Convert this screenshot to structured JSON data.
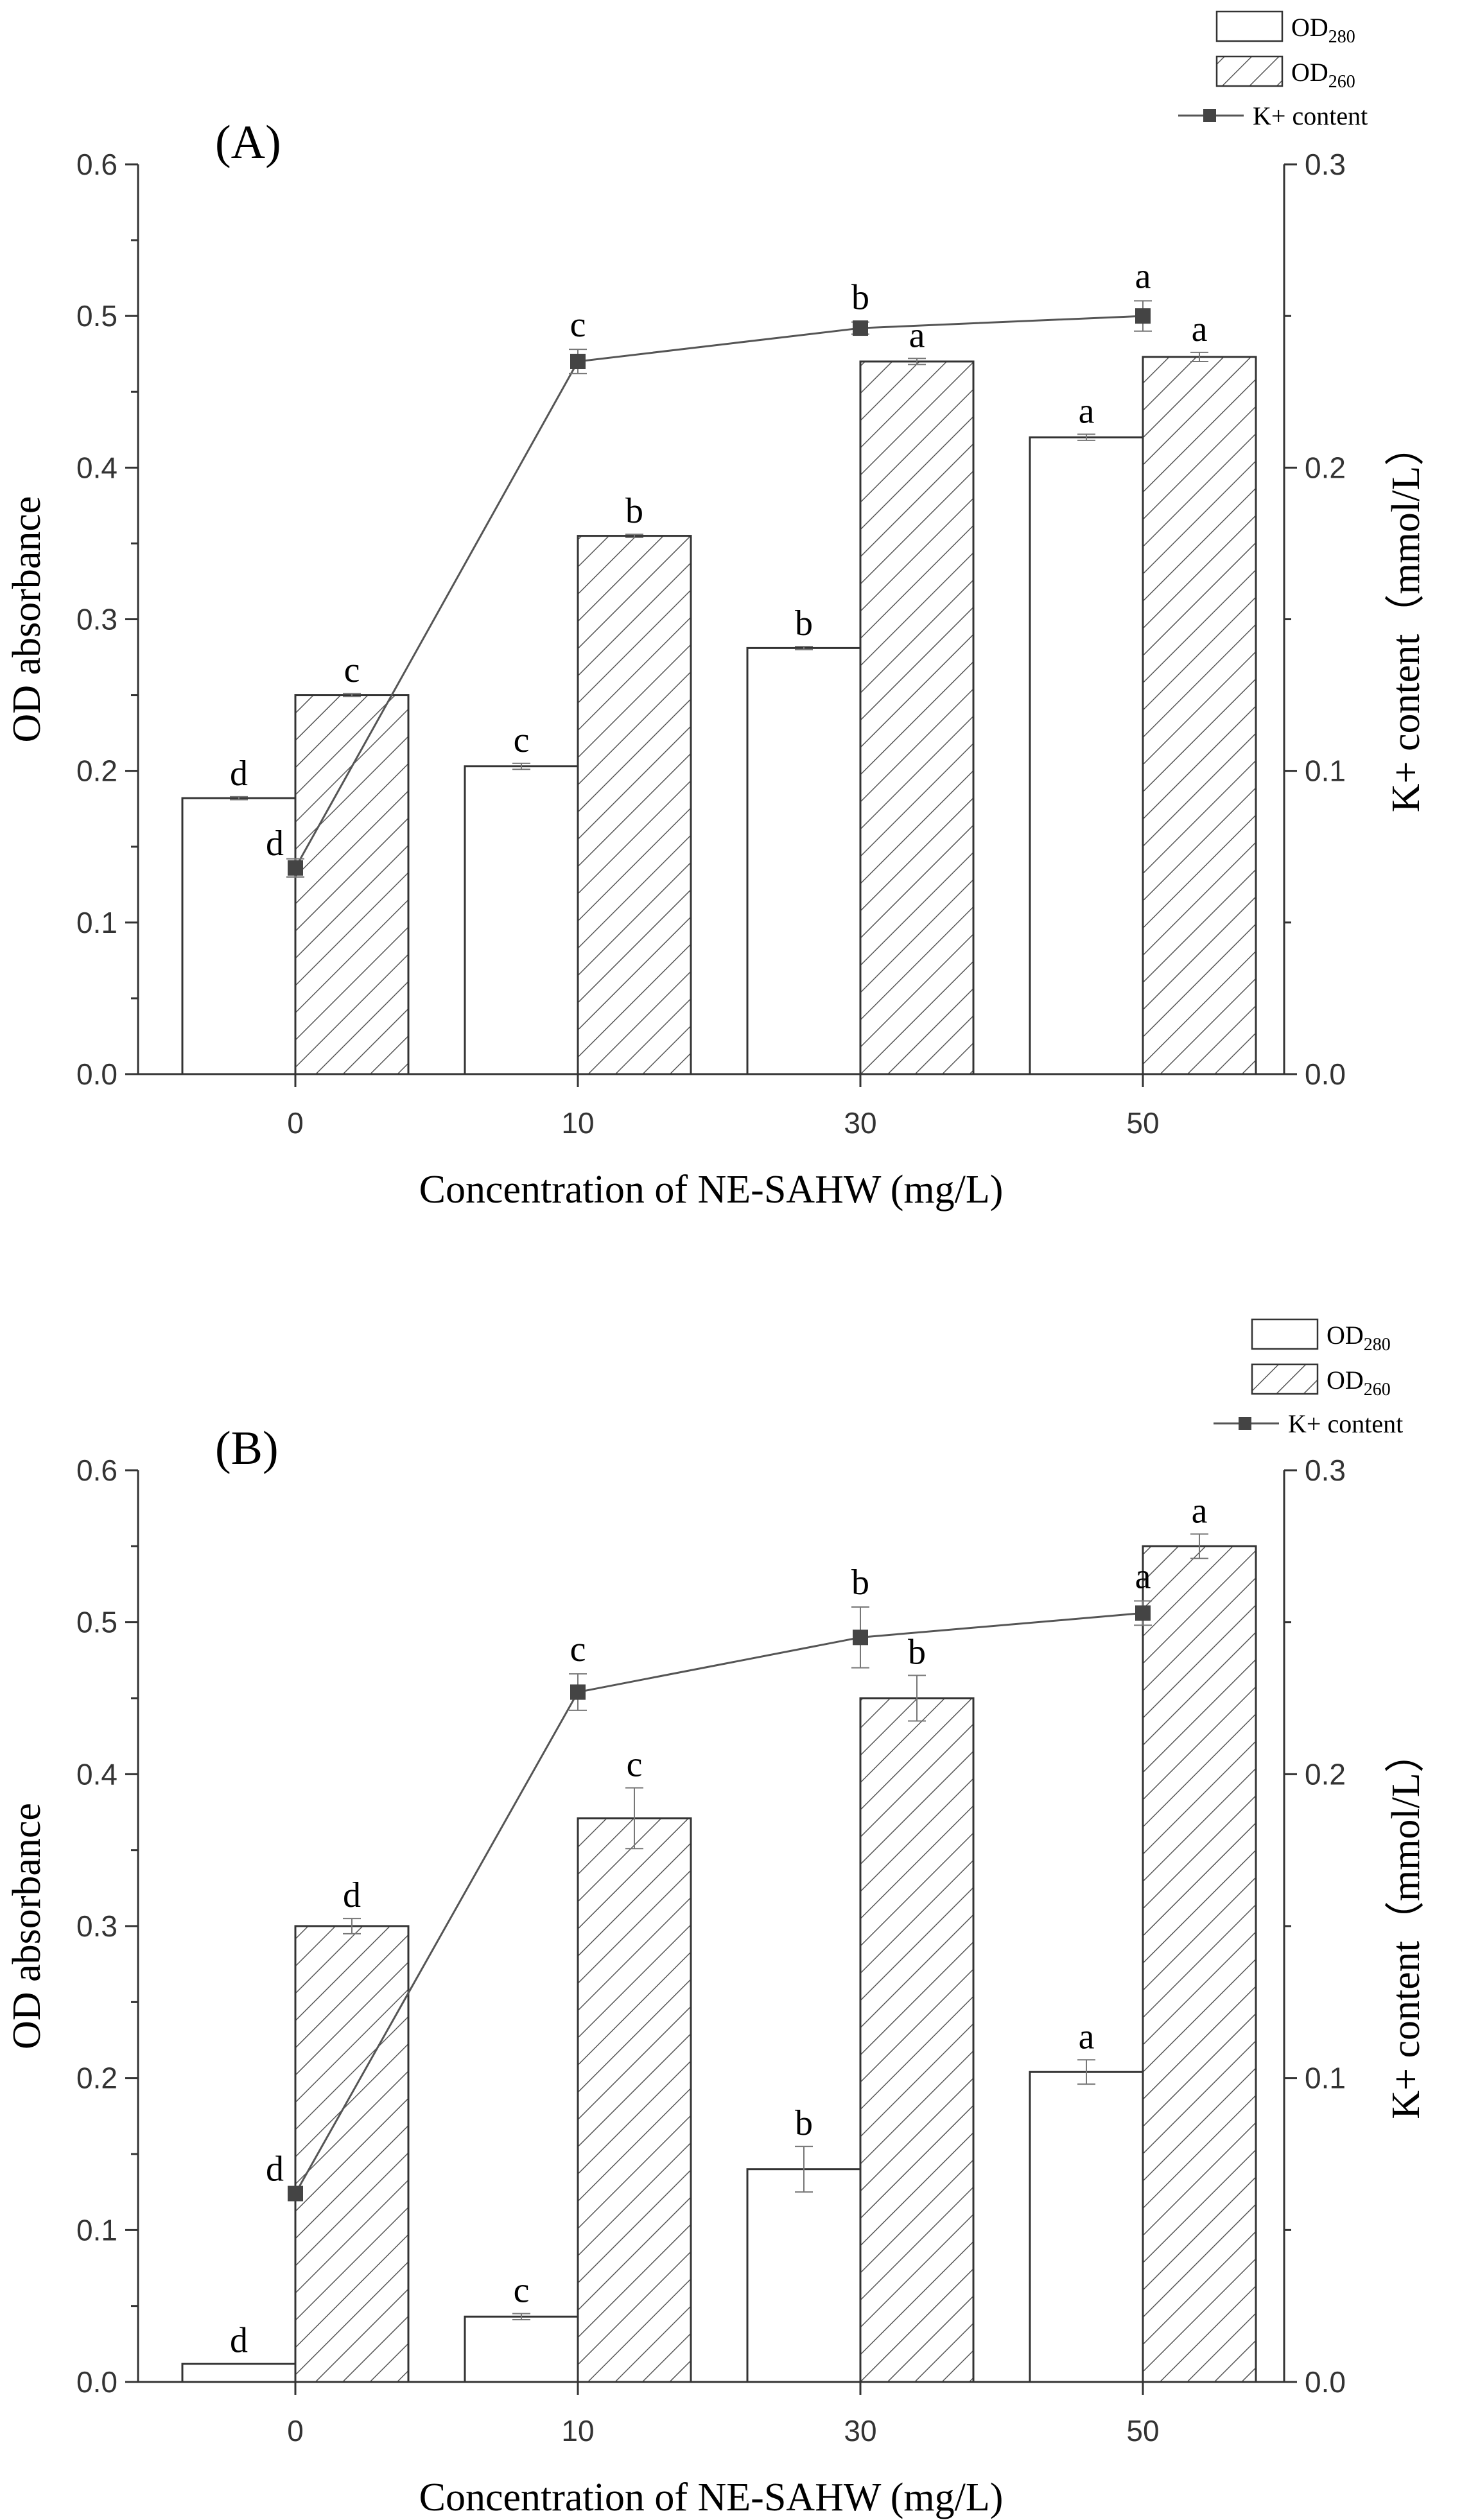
{
  "chart_data": [
    {
      "type": "bar",
      "panel_label": "(A)",
      "categories": [
        "0",
        "10",
        "30",
        "50"
      ],
      "xlabel": "Concentration of NE-SAHW (mg/L)",
      "ylabel": "OD absorbance",
      "y2label": "K+ content（mmol/L）",
      "ylim": [
        0,
        0.6
      ],
      "y2lim": [
        0,
        0.3
      ],
      "yticks": [
        "0.0",
        "0.1",
        "0.2",
        "0.3",
        "0.4",
        "0.5",
        "0.6"
      ],
      "y2ticks": [
        "0.0",
        "0.1",
        "0.2",
        "0.3"
      ],
      "legend": {
        "od280": {
          "main": "OD",
          "sub": "280"
        },
        "od260": {
          "main": "OD",
          "sub": "260"
        },
        "k": "K+ content"
      },
      "series": [
        {
          "name": "OD280",
          "kind": "bar",
          "values": [
            0.182,
            0.203,
            0.281,
            0.42
          ],
          "errors": [
            0.001,
            0.002,
            0.001,
            0.002
          ],
          "letters": [
            "d",
            "c",
            "b",
            "a"
          ]
        },
        {
          "name": "OD260",
          "kind": "bar",
          "values": [
            0.25,
            0.355,
            0.47,
            0.473
          ],
          "errors": [
            0.001,
            0.001,
            0.002,
            0.003
          ],
          "letters": [
            "c",
            "b",
            "a",
            "a"
          ]
        },
        {
          "name": "K+ content",
          "kind": "line",
          "axis": "right",
          "values": [
            0.068,
            0.235,
            0.246,
            0.25
          ],
          "errors": [
            0.003,
            0.004,
            0.002,
            0.005
          ],
          "letters": [
            "d",
            "c",
            "b",
            "a"
          ]
        }
      ]
    },
    {
      "type": "bar",
      "panel_label": "(B)",
      "categories": [
        "0",
        "10",
        "30",
        "50"
      ],
      "xlabel": "Concentration of NE-SAHW (mg/L)",
      "ylabel": "OD absorbance",
      "y2label": "K+ content（mmol/L）",
      "ylim": [
        0,
        0.6
      ],
      "y2lim": [
        0,
        0.3
      ],
      "yticks": [
        "0.0",
        "0.1",
        "0.2",
        "0.3",
        "0.4",
        "0.5",
        "0.6"
      ],
      "y2ticks": [
        "0.0",
        "0.1",
        "0.2",
        "0.3"
      ],
      "legend": {
        "od280": {
          "main": "OD",
          "sub": "280"
        },
        "od260": {
          "main": "OD",
          "sub": "260"
        },
        "k": "K+ content"
      },
      "series": [
        {
          "name": "OD280",
          "kind": "bar",
          "values": [
            0.012,
            0.043,
            0.14,
            0.204
          ],
          "errors": [
            0.0,
            0.002,
            0.015,
            0.008
          ],
          "letters": [
            "d",
            "c",
            "b",
            "a"
          ]
        },
        {
          "name": "OD260",
          "kind": "bar",
          "values": [
            0.3,
            0.371,
            0.45,
            0.55
          ],
          "errors": [
            0.005,
            0.02,
            0.015,
            0.008
          ],
          "letters": [
            "d",
            "c",
            "b",
            "a"
          ]
        },
        {
          "name": "K+ content",
          "kind": "line",
          "axis": "right",
          "values": [
            0.062,
            0.227,
            0.245,
            0.253
          ],
          "errors": [
            0.0,
            0.006,
            0.01,
            0.004
          ],
          "letters": [
            "d",
            "c",
            "b",
            "a"
          ]
        }
      ]
    }
  ]
}
